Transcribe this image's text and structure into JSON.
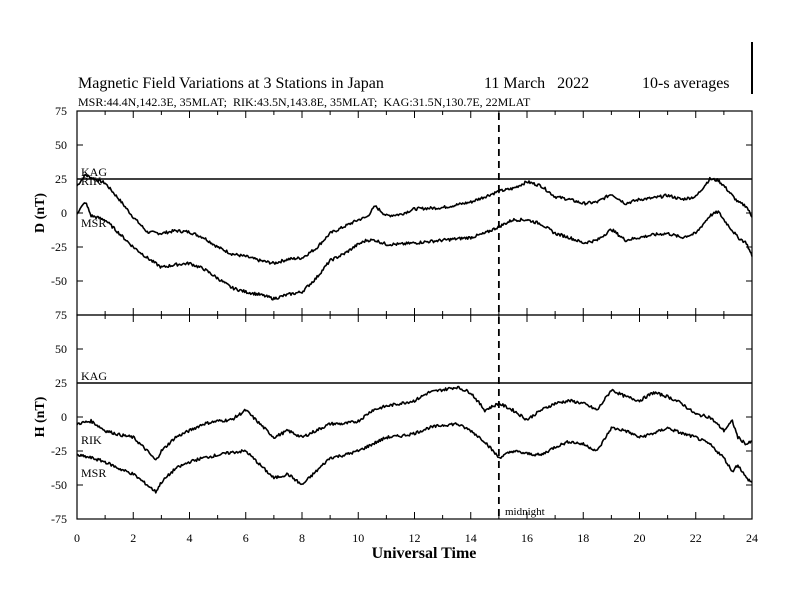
{
  "chart_data": {
    "type": "line",
    "title": "Magnetic Field Variations at 3 Stations in Japan",
    "date": "11 March   2022",
    "averaging": "10-s averages",
    "subtitle": "MSR:44.4N,142.3E, 35MLAT;  RIK:43.5N,143.8E, 35MLAT;  KAG:31.5N,130.7E, 22MLAT",
    "xlabel": "Universal Time",
    "xlim": [
      0,
      24
    ],
    "xticks": [
      "0",
      "2",
      "4",
      "6",
      "8",
      "10",
      "12",
      "14",
      "16",
      "18",
      "20",
      "22",
      "24"
    ],
    "marker": {
      "x": 15,
      "label": "midnight"
    },
    "panels": [
      {
        "ylabel": "D (nT)",
        "ylim": [
          -75,
          75
        ],
        "yticks": [
          "75",
          "50",
          "25",
          "0",
          "-25",
          "-50",
          "-75"
        ],
        "series": [
          {
            "name": "KAG",
            "x": [
              0,
              24
            ],
            "y": [
              25,
              25
            ]
          },
          {
            "name": "RIK",
            "x": [
              0,
              0.3,
              0.5,
              1,
              1.5,
              2,
              2.5,
              3,
              3.5,
              4,
              4.5,
              5,
              5.5,
              6,
              6.5,
              7,
              7.5,
              8,
              8.5,
              9,
              9.5,
              10,
              10.3,
              10.6,
              11,
              11.5,
              12,
              13,
              14,
              14.5,
              15,
              15.5,
              16,
              16.5,
              17,
              17.5,
              18,
              18.5,
              19,
              19.5,
              20,
              20.5,
              21,
              21.5,
              22,
              22.5,
              22.8,
              23,
              23.5,
              23.8,
              24
            ],
            "y": [
              20,
              28,
              26,
              22,
              10,
              -3,
              -14,
              -15,
              -13,
              -14,
              -18,
              -25,
              -30,
              -32,
              -35,
              -37,
              -34,
              -33,
              -26,
              -15,
              -10,
              -5,
              -3,
              5,
              -2,
              -1,
              3,
              4,
              8,
              12,
              16,
              18,
              23,
              20,
              12,
              10,
              7,
              8,
              14,
              7,
              10,
              11,
              13,
              10,
              12,
              25,
              24,
              20,
              8,
              5,
              -3
            ]
          },
          {
            "name": "MSR",
            "x": [
              0,
              0.3,
              0.5,
              1,
              1.5,
              2,
              2.5,
              3,
              3.5,
              4,
              4.5,
              5,
              5.5,
              6,
              6.5,
              7,
              7.5,
              8,
              8.5,
              9,
              9.5,
              10,
              10.3,
              10.6,
              11,
              11.5,
              12,
              13,
              14,
              14.5,
              15,
              15.5,
              16,
              16.5,
              17,
              17.5,
              18,
              18.5,
              19,
              19.5,
              20,
              20.5,
              21,
              21.5,
              22,
              22.5,
              22.8,
              23,
              23.5,
              23.8,
              24
            ],
            "y": [
              0,
              8,
              -2,
              -5,
              -15,
              -25,
              -33,
              -40,
              -38,
              -37,
              -41,
              -48,
              -55,
              -58,
              -60,
              -63,
              -60,
              -58,
              -48,
              -35,
              -30,
              -23,
              -20,
              -20,
              -23,
              -23,
              -22,
              -20,
              -18,
              -15,
              -10,
              -5,
              -5,
              -8,
              -15,
              -18,
              -22,
              -20,
              -12,
              -20,
              -18,
              -16,
              -15,
              -18,
              -15,
              -2,
              1,
              -5,
              -18,
              -22,
              -32
            ]
          }
        ]
      },
      {
        "ylabel": "H (nT)",
        "ylim": [
          -75,
          75
        ],
        "yticks": [
          "75",
          "50",
          "25",
          "0",
          "-25",
          "-50",
          "-75"
        ],
        "series": [
          {
            "name": "KAG",
            "x": [
              0,
              24
            ],
            "y": [
              25,
              25
            ]
          },
          {
            "name": "RIK",
            "x": [
              0,
              0.5,
              1,
              1.5,
              2,
              2.5,
              2.8,
              3,
              3.5,
              4,
              4.5,
              5,
              5.5,
              6,
              6.5,
              7,
              7.5,
              8,
              8.5,
              9,
              9.5,
              10,
              10.5,
              11,
              11.5,
              12,
              12.5,
              13,
              13.5,
              14,
              14.5,
              15,
              15.5,
              16,
              16.5,
              17,
              17.5,
              18,
              18.5,
              19,
              19.5,
              20,
              20.5,
              21,
              21.5,
              22,
              22.5,
              23,
              23.3,
              23.5,
              23.8,
              24
            ],
            "y": [
              -5,
              -3,
              -10,
              -13,
              -15,
              -25,
              -32,
              -25,
              -15,
              -10,
              -5,
              -3,
              -2,
              5,
              -5,
              -15,
              -10,
              -15,
              -10,
              -5,
              -5,
              -3,
              5,
              8,
              10,
              12,
              18,
              20,
              22,
              18,
              5,
              10,
              5,
              -2,
              5,
              10,
              12,
              10,
              5,
              20,
              15,
              12,
              18,
              15,
              10,
              2,
              0,
              -10,
              -3,
              -15,
              -20,
              -18
            ]
          },
          {
            "name": "MSR",
            "x": [
              0,
              0.5,
              1,
              1.5,
              2,
              2.5,
              2.8,
              3,
              3.5,
              4,
              4.5,
              5,
              5.5,
              6,
              6.5,
              7,
              7.5,
              8,
              8.5,
              9,
              9.5,
              10,
              10.5,
              11,
              11.5,
              12,
              12.5,
              13,
              13.5,
              14,
              14.5,
              15,
              15.5,
              16,
              16.5,
              17,
              17.5,
              18,
              18.5,
              19,
              19.5,
              20,
              20.5,
              21,
              21.5,
              22,
              22.5,
              23,
              23.3,
              23.5,
              23.8,
              24
            ],
            "y": [
              -28,
              -30,
              -33,
              -38,
              -42,
              -50,
              -55,
              -48,
              -38,
              -33,
              -30,
              -28,
              -26,
              -25,
              -35,
              -45,
              -42,
              -50,
              -40,
              -30,
              -28,
              -25,
              -20,
              -15,
              -14,
              -12,
              -8,
              -6,
              -5,
              -10,
              -18,
              -30,
              -25,
              -27,
              -28,
              -22,
              -18,
              -20,
              -25,
              -8,
              -10,
              -15,
              -12,
              -8,
              -12,
              -15,
              -20,
              -30,
              -40,
              -35,
              -45,
              -48
            ]
          }
        ]
      }
    ]
  }
}
